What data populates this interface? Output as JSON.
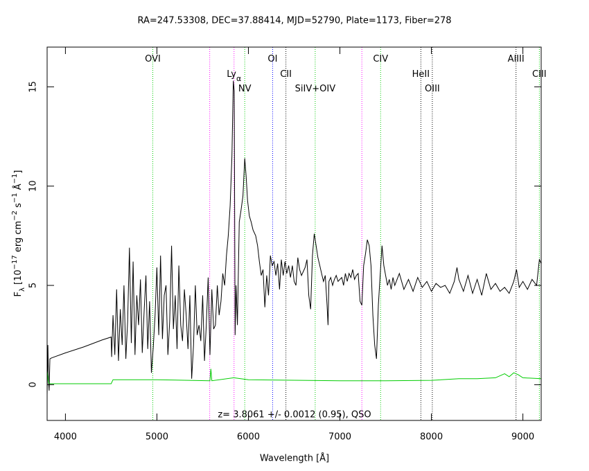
{
  "chart_data": {
    "type": "line",
    "title": "RA=247.53308, DEC=37.88414, MJD=52790, Plate=1173, Fiber=278",
    "x_label": "Wavelength [Å]",
    "y_label": [
      "F",
      "λ",
      " [10",
      "−17",
      " erg cm",
      "−2",
      " s",
      "−1",
      " Å",
      "−1",
      "]"
    ],
    "annotation": "z= 3.8061 +/- 0.0012 (0.95), QSO",
    "xlim": [
      3800,
      9200
    ],
    "xticks": [
      4000,
      5000,
      6000,
      7000,
      8000,
      9000
    ],
    "ylim": [
      -1.8,
      17
    ],
    "yticks": [
      0,
      5,
      10,
      15
    ],
    "series": [
      {
        "color": "#000000",
        "x": [
          3800,
          3808,
          3815,
          3822,
          3830,
          3850,
          4000,
          4200,
          4400,
          4500,
          4505,
          4520,
          4540,
          4560,
          4580,
          4600,
          4620,
          4640,
          4660,
          4680,
          4700,
          4720,
          4740,
          4760,
          4780,
          4800,
          4820,
          4840,
          4860,
          4880,
          4900,
          4920,
          4940,
          4960,
          4980,
          5000,
          5020,
          5040,
          5060,
          5080,
          5100,
          5120,
          5140,
          5160,
          5180,
          5200,
          5220,
          5240,
          5260,
          5280,
          5300,
          5320,
          5340,
          5360,
          5380,
          5400,
          5420,
          5440,
          5460,
          5480,
          5500,
          5520,
          5540,
          5560,
          5580,
          5600,
          5620,
          5640,
          5660,
          5680,
          5700,
          5720,
          5740,
          5760,
          5780,
          5800,
          5820,
          5835,
          5845,
          5855,
          5865,
          5880,
          5900,
          5920,
          5940,
          5960,
          5975,
          5990,
          6010,
          6030,
          6050,
          6080,
          6100,
          6120,
          6140,
          6160,
          6180,
          6200,
          6220,
          6240,
          6260,
          6280,
          6300,
          6320,
          6340,
          6360,
          6380,
          6400,
          6420,
          6440,
          6460,
          6480,
          6500,
          6520,
          6540,
          6560,
          6580,
          6600,
          6620,
          6640,
          6660,
          6680,
          6700,
          6720,
          6740,
          6760,
          6780,
          6800,
          6820,
          6840,
          6860,
          6870,
          6880,
          6900,
          6920,
          6940,
          6960,
          6980,
          7000,
          7020,
          7040,
          7060,
          7080,
          7100,
          7120,
          7140,
          7160,
          7180,
          7200,
          7220,
          7240,
          7260,
          7280,
          7300,
          7320,
          7340,
          7360,
          7380,
          7400,
          7420,
          7440,
          7460,
          7480,
          7500,
          7520,
          7540,
          7560,
          7580,
          7600,
          7650,
          7700,
          7750,
          7800,
          7850,
          7900,
          7950,
          8000,
          8050,
          8100,
          8150,
          8200,
          8250,
          8280,
          8300,
          8350,
          8400,
          8450,
          8500,
          8550,
          8600,
          8650,
          8700,
          8750,
          8800,
          8850,
          8900,
          8930,
          8960,
          9000,
          9050,
          9100,
          9150,
          9180,
          9200
        ],
        "values": [
          -0.5,
          2.0,
          0.2,
          -0.3,
          1.3,
          1.35,
          1.6,
          1.9,
          2.25,
          2.4,
          1.4,
          3.5,
          1.5,
          4.8,
          1.2,
          3.8,
          2.0,
          5.0,
          1.3,
          3.2,
          6.9,
          2.1,
          6.2,
          1.5,
          4.5,
          3.0,
          5.3,
          1.6,
          3.7,
          5.5,
          1.8,
          4.2,
          0.6,
          1.9,
          3.5,
          5.9,
          2.5,
          6.5,
          2.3,
          4.5,
          5.0,
          1.5,
          3.2,
          7.0,
          2.8,
          4.5,
          1.8,
          6.0,
          3.0,
          2.2,
          4.8,
          3.5,
          1.8,
          4.5,
          0.3,
          2.0,
          5.0,
          2.5,
          3.0,
          2.2,
          4.5,
          1.2,
          3.0,
          5.4,
          1.5,
          4.8,
          2.8,
          3.0,
          5.0,
          3.5,
          4.2,
          5.6,
          5.0,
          6.5,
          7.5,
          9.0,
          11.5,
          15.3,
          14.8,
          2.5,
          5.0,
          3.0,
          8.2,
          8.8,
          9.5,
          11.4,
          10.5,
          9.3,
          8.5,
          8.2,
          7.8,
          7.5,
          7.0,
          6.2,
          5.5,
          5.8,
          3.9,
          5.5,
          4.5,
          6.5,
          6.0,
          6.2,
          5.5,
          6.1,
          4.8,
          6.3,
          5.5,
          6.2,
          5.6,
          6.0,
          5.4,
          6.0,
          5.2,
          5.0,
          6.4,
          5.8,
          5.5,
          5.7,
          5.9,
          6.3,
          4.5,
          3.8,
          6.5,
          7.6,
          7.0,
          6.4,
          6.0,
          5.6,
          5.2,
          5.5,
          4.0,
          3.0,
          5.2,
          5.4,
          5.0,
          5.3,
          5.5,
          5.2,
          5.3,
          5.4,
          5.0,
          5.6,
          5.2,
          5.6,
          5.4,
          5.8,
          5.3,
          5.5,
          5.6,
          4.2,
          4.0,
          6.0,
          6.6,
          7.3,
          7.0,
          6.0,
          3.5,
          2.0,
          1.3,
          4.0,
          5.5,
          7.0,
          6.0,
          5.5,
          5.0,
          5.3,
          4.8,
          5.4,
          5.0,
          5.6,
          4.8,
          5.3,
          4.7,
          5.4,
          4.9,
          5.2,
          4.7,
          5.1,
          4.9,
          5.0,
          4.6,
          5.2,
          5.9,
          5.3,
          4.7,
          5.5,
          4.6,
          5.3,
          4.5,
          5.6,
          4.8,
          5.1,
          4.7,
          4.9,
          4.6,
          5.2,
          5.8,
          4.9,
          5.2,
          4.8,
          5.3,
          5.0,
          6.3,
          6.1
        ]
      },
      {
        "color": "#00cc00",
        "x": [
          3800,
          3815,
          3830,
          4500,
          4520,
          5000,
          5580,
          5590,
          5600,
          5840,
          6000,
          7000,
          7500,
          8000,
          8300,
          8500,
          8700,
          8800,
          8850,
          8900,
          8950,
          9000,
          9200
        ],
        "values": [
          0.7,
          0.1,
          0.05,
          0.05,
          0.25,
          0.25,
          0.2,
          0.8,
          0.2,
          0.35,
          0.25,
          0.2,
          0.2,
          0.22,
          0.3,
          0.3,
          0.35,
          0.55,
          0.4,
          0.6,
          0.5,
          0.35,
          0.3
        ]
      }
    ],
    "lines": [
      {
        "x": 4955,
        "color": "#00cc00",
        "label": "OVI"
      },
      {
        "x": 5577,
        "color": "#ff00ff"
      },
      {
        "x": 5843,
        "color": "#ff00ff",
        "label": "Ly",
        "label_sub": "α"
      },
      {
        "x": 5960,
        "color": "#00cc00",
        "label": "NV"
      },
      {
        "x": 6265,
        "color": "#0000ff",
        "label": "OI"
      },
      {
        "x": 6410,
        "color": "#000000",
        "label": "CII"
      },
      {
        "x": 6730,
        "color": "#00cc00",
        "label": "SiIV+OIV"
      },
      {
        "x": 7240,
        "color": "#ff00ff"
      },
      {
        "x": 7445,
        "color": "#00cc00",
        "label": "CIV"
      },
      {
        "x": 7885,
        "color": "#000000",
        "label": "HeII"
      },
      {
        "x": 8010,
        "color": "#000000",
        "label": "OIII"
      },
      {
        "x": 8925,
        "color": "#000000",
        "label": "AlIII"
      },
      {
        "x": 9180,
        "color": "#00cc00",
        "label": "CIII"
      }
    ]
  }
}
